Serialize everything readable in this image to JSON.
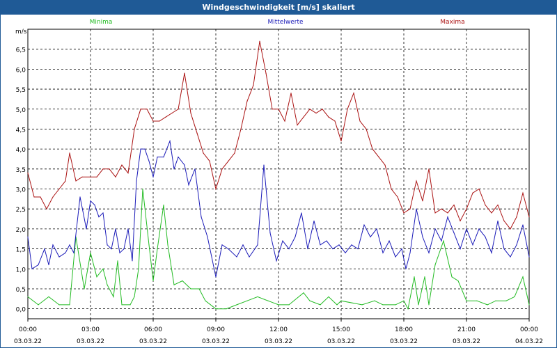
{
  "window": {
    "title": "Windgeschwindigkeit [m/s] skaliert"
  },
  "chart_data": {
    "type": "line",
    "title": "Windgeschwindigkeit [m/s] skaliert",
    "ylabel": "m/s",
    "xlabel": "",
    "ylim": [
      -0.25,
      7.0
    ],
    "xlim": [
      0,
      24
    ],
    "grid": true,
    "y_ticks": [
      0.0,
      0.5,
      1.0,
      1.5,
      2.0,
      2.5,
      3.0,
      3.5,
      4.0,
      4.5,
      5.0,
      5.5,
      6.0,
      6.5
    ],
    "y_tick_labels": [
      "0,0",
      "0,5",
      "1,0",
      "1,5",
      "2,0",
      "2,5",
      "3,0",
      "3,5",
      "4,0",
      "4,5",
      "5,0",
      "5,5",
      "6,0",
      "6,5"
    ],
    "x_ticks": [
      {
        "x": 0,
        "time": "00:00",
        "date": "03.03.22"
      },
      {
        "x": 3,
        "time": "03:00",
        "date": "03.03.22"
      },
      {
        "x": 6,
        "time": "06:00",
        "date": "03.03.22"
      },
      {
        "x": 9,
        "time": "09:00",
        "date": "03.03.22"
      },
      {
        "x": 12,
        "time": "12:00",
        "date": "03.03.22"
      },
      {
        "x": 15,
        "time": "15:00",
        "date": "03.03.22"
      },
      {
        "x": 18,
        "time": "18:00",
        "date": "03.03.22"
      },
      {
        "x": 21,
        "time": "21:00",
        "date": "03.03.22"
      },
      {
        "x": 24,
        "time": "00:00",
        "date": "04.03.22"
      }
    ],
    "legend_placement": "top",
    "series": [
      {
        "name": "Minima",
        "color": "#22bb22",
        "points": [
          [
            0,
            0.3
          ],
          [
            0.5,
            0.1
          ],
          [
            1,
            0.3
          ],
          [
            1.5,
            0.1
          ],
          [
            2,
            0.1
          ],
          [
            2.3,
            1.8
          ],
          [
            2.7,
            0.5
          ],
          [
            3,
            1.4
          ],
          [
            3.3,
            0.8
          ],
          [
            3.6,
            1.0
          ],
          [
            3.8,
            0.6
          ],
          [
            4.1,
            0.3
          ],
          [
            4.3,
            1.2
          ],
          [
            4.5,
            0.1
          ],
          [
            4.9,
            0.1
          ],
          [
            5.1,
            0.3
          ],
          [
            5.3,
            1.0
          ],
          [
            5.5,
            3.0
          ],
          [
            5.8,
            1.6
          ],
          [
            6.0,
            0.7
          ],
          [
            6.2,
            1.5
          ],
          [
            6.5,
            2.6
          ],
          [
            6.7,
            1.6
          ],
          [
            7.0,
            0.6
          ],
          [
            7.4,
            0.7
          ],
          [
            7.8,
            0.5
          ],
          [
            8.2,
            0.5
          ],
          [
            8.5,
            0.2
          ],
          [
            9.0,
            0.0
          ],
          [
            9.5,
            0.0
          ],
          [
            10,
            0.1
          ],
          [
            10.5,
            0.2
          ],
          [
            11,
            0.3
          ],
          [
            11.5,
            0.2
          ],
          [
            12,
            0.1
          ],
          [
            12.5,
            0.1
          ],
          [
            13.2,
            0.4
          ],
          [
            13.5,
            0.2
          ],
          [
            14,
            0.1
          ],
          [
            14.4,
            0.3
          ],
          [
            14.8,
            0.1
          ],
          [
            15,
            0.2
          ],
          [
            16,
            0.1
          ],
          [
            16.6,
            0.2
          ],
          [
            17,
            0.1
          ],
          [
            17.6,
            0.1
          ],
          [
            18,
            0.2
          ],
          [
            18.2,
            0.0
          ],
          [
            18.5,
            0.8
          ],
          [
            18.7,
            0.1
          ],
          [
            19,
            0.8
          ],
          [
            19.2,
            0.1
          ],
          [
            19.5,
            1.1
          ],
          [
            19.9,
            1.7
          ],
          [
            20.3,
            0.8
          ],
          [
            20.6,
            0.7
          ],
          [
            21,
            0.2
          ],
          [
            21.5,
            0.2
          ],
          [
            22,
            0.1
          ],
          [
            22.4,
            0.2
          ],
          [
            22.9,
            0.2
          ],
          [
            23.3,
            0.3
          ],
          [
            23.7,
            0.8
          ],
          [
            24,
            0.1
          ]
        ]
      },
      {
        "name": "Mittelwerte",
        "color": "#1a1ab8",
        "points": [
          [
            0,
            1.8
          ],
          [
            0.2,
            1.0
          ],
          [
            0.5,
            1.1
          ],
          [
            0.8,
            1.5
          ],
          [
            1,
            1.1
          ],
          [
            1.2,
            1.6
          ],
          [
            1.5,
            1.3
          ],
          [
            1.8,
            1.4
          ],
          [
            2,
            1.6
          ],
          [
            2.2,
            1.4
          ],
          [
            2.5,
            2.8
          ],
          [
            2.8,
            2.0
          ],
          [
            3,
            2.7
          ],
          [
            3.2,
            2.6
          ],
          [
            3.4,
            2.3
          ],
          [
            3.6,
            2.4
          ],
          [
            3.8,
            1.6
          ],
          [
            4.0,
            1.5
          ],
          [
            4.2,
            2.0
          ],
          [
            4.4,
            1.4
          ],
          [
            4.6,
            1.5
          ],
          [
            4.8,
            2.0
          ],
          [
            5.0,
            1.2
          ],
          [
            5.2,
            3.2
          ],
          [
            5.4,
            4.0
          ],
          [
            5.6,
            4.0
          ],
          [
            5.8,
            3.7
          ],
          [
            6.0,
            3.3
          ],
          [
            6.2,
            3.8
          ],
          [
            6.5,
            3.8
          ],
          [
            6.8,
            4.2
          ],
          [
            7.0,
            3.5
          ],
          [
            7.2,
            3.8
          ],
          [
            7.5,
            3.6
          ],
          [
            7.7,
            3.1
          ],
          [
            8.0,
            3.5
          ],
          [
            8.3,
            2.3
          ],
          [
            8.6,
            1.8
          ],
          [
            9.0,
            0.8
          ],
          [
            9.3,
            1.6
          ],
          [
            9.6,
            1.5
          ],
          [
            10.0,
            1.3
          ],
          [
            10.3,
            1.6
          ],
          [
            10.6,
            1.3
          ],
          [
            11.0,
            1.6
          ],
          [
            11.3,
            3.6
          ],
          [
            11.6,
            1.9
          ],
          [
            11.9,
            1.2
          ],
          [
            12.2,
            1.7
          ],
          [
            12.5,
            1.5
          ],
          [
            12.8,
            1.8
          ],
          [
            13.1,
            2.4
          ],
          [
            13.4,
            1.5
          ],
          [
            13.7,
            2.2
          ],
          [
            14.0,
            1.6
          ],
          [
            14.3,
            1.7
          ],
          [
            14.6,
            1.5
          ],
          [
            14.9,
            1.6
          ],
          [
            15.2,
            1.4
          ],
          [
            15.5,
            1.6
          ],
          [
            15.8,
            1.5
          ],
          [
            16.1,
            2.1
          ],
          [
            16.4,
            1.8
          ],
          [
            16.7,
            2.0
          ],
          [
            17.0,
            1.4
          ],
          [
            17.3,
            1.7
          ],
          [
            17.6,
            1.3
          ],
          [
            17.9,
            1.5
          ],
          [
            18.1,
            1.0
          ],
          [
            18.3,
            1.4
          ],
          [
            18.6,
            2.5
          ],
          [
            18.9,
            1.8
          ],
          [
            19.2,
            1.4
          ],
          [
            19.5,
            2.0
          ],
          [
            19.8,
            1.7
          ],
          [
            20.1,
            2.3
          ],
          [
            20.4,
            1.9
          ],
          [
            20.7,
            1.5
          ],
          [
            21.0,
            2.0
          ],
          [
            21.3,
            1.6
          ],
          [
            21.6,
            2.0
          ],
          [
            21.9,
            1.8
          ],
          [
            22.2,
            1.4
          ],
          [
            22.5,
            2.2
          ],
          [
            22.8,
            1.5
          ],
          [
            23.1,
            1.3
          ],
          [
            23.4,
            1.6
          ],
          [
            23.7,
            2.1
          ],
          [
            24,
            1.3
          ]
        ]
      },
      {
        "name": "Maxima",
        "color": "#aa1111",
        "points": [
          [
            0,
            3.4
          ],
          [
            0.3,
            2.8
          ],
          [
            0.6,
            2.8
          ],
          [
            0.9,
            2.5
          ],
          [
            1.2,
            2.8
          ],
          [
            1.5,
            3.0
          ],
          [
            1.8,
            3.2
          ],
          [
            2.0,
            3.9
          ],
          [
            2.3,
            3.2
          ],
          [
            2.6,
            3.3
          ],
          [
            3.0,
            3.3
          ],
          [
            3.3,
            3.3
          ],
          [
            3.6,
            3.5
          ],
          [
            3.9,
            3.5
          ],
          [
            4.2,
            3.3
          ],
          [
            4.5,
            3.6
          ],
          [
            4.8,
            3.4
          ],
          [
            5.1,
            4.5
          ],
          [
            5.4,
            5.0
          ],
          [
            5.7,
            5.0
          ],
          [
            6.0,
            4.7
          ],
          [
            6.3,
            4.7
          ],
          [
            6.6,
            4.8
          ],
          [
            6.9,
            4.9
          ],
          [
            7.2,
            5.0
          ],
          [
            7.5,
            5.9
          ],
          [
            7.8,
            4.9
          ],
          [
            8.1,
            4.4
          ],
          [
            8.4,
            3.9
          ],
          [
            8.7,
            3.7
          ],
          [
            9.0,
            3.0
          ],
          [
            9.3,
            3.5
          ],
          [
            9.6,
            3.7
          ],
          [
            9.9,
            3.9
          ],
          [
            10.2,
            4.5
          ],
          [
            10.5,
            5.2
          ],
          [
            10.8,
            5.6
          ],
          [
            11.1,
            6.7
          ],
          [
            11.4,
            5.9
          ],
          [
            11.7,
            5.0
          ],
          [
            12.0,
            5.0
          ],
          [
            12.3,
            4.7
          ],
          [
            12.6,
            5.4
          ],
          [
            12.9,
            4.6
          ],
          [
            13.2,
            4.8
          ],
          [
            13.5,
            5.0
          ],
          [
            13.8,
            4.9
          ],
          [
            14.1,
            5.0
          ],
          [
            14.4,
            4.8
          ],
          [
            14.7,
            4.7
          ],
          [
            15.0,
            4.2
          ],
          [
            15.3,
            5.0
          ],
          [
            15.6,
            5.4
          ],
          [
            15.9,
            4.7
          ],
          [
            16.2,
            4.5
          ],
          [
            16.5,
            4.0
          ],
          [
            16.8,
            3.8
          ],
          [
            17.1,
            3.6
          ],
          [
            17.4,
            3.0
          ],
          [
            17.7,
            2.8
          ],
          [
            18.0,
            2.4
          ],
          [
            18.3,
            2.5
          ],
          [
            18.6,
            3.2
          ],
          [
            18.9,
            2.7
          ],
          [
            19.2,
            3.5
          ],
          [
            19.5,
            2.4
          ],
          [
            19.8,
            2.5
          ],
          [
            20.1,
            2.4
          ],
          [
            20.4,
            2.6
          ],
          [
            20.7,
            2.2
          ],
          [
            21.0,
            2.5
          ],
          [
            21.3,
            2.9
          ],
          [
            21.6,
            3.0
          ],
          [
            21.9,
            2.6
          ],
          [
            22.2,
            2.4
          ],
          [
            22.5,
            2.6
          ],
          [
            22.8,
            2.2
          ],
          [
            23.1,
            2.0
          ],
          [
            23.4,
            2.3
          ],
          [
            23.7,
            2.9
          ],
          [
            24,
            2.3
          ]
        ]
      }
    ]
  }
}
